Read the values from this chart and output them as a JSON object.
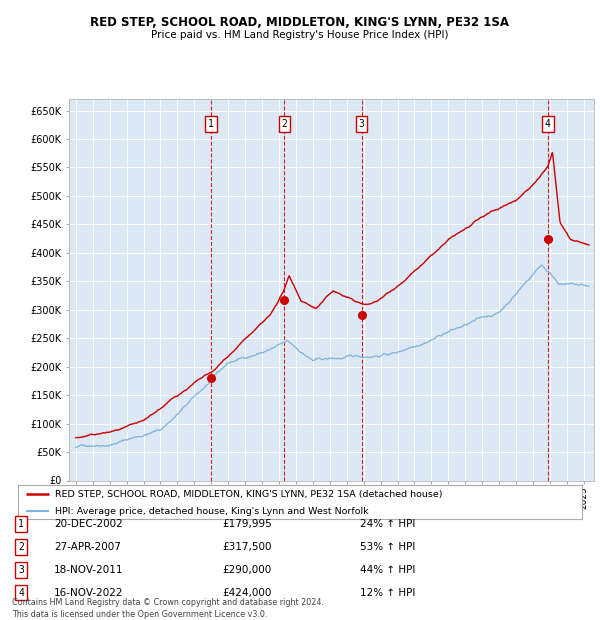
{
  "title": "RED STEP, SCHOOL ROAD, MIDDLETON, KING'S LYNN, PE32 1SA",
  "subtitle": "Price paid vs. HM Land Registry's House Price Index (HPI)",
  "ylim": [
    0,
    670000
  ],
  "xlim_start": 1994.6,
  "xlim_end": 2025.6,
  "plot_bg": "#dce9f5",
  "grid_color": "#ffffff",
  "red_color": "#cc0000",
  "blue_color": "#7fb3d9",
  "sale_dates": [
    2002.97,
    2007.32,
    2011.88,
    2022.88
  ],
  "sale_prices": [
    179995,
    317500,
    290000,
    424000
  ],
  "sale_labels": [
    "1",
    "2",
    "3",
    "4"
  ],
  "legend_line1": "RED STEP, SCHOOL ROAD, MIDDLETON, KING'S LYNN, PE32 1SA (detached house)",
  "legend_line2": "HPI: Average price, detached house, King's Lynn and West Norfolk",
  "table_rows": [
    [
      "1",
      "20-DEC-2002",
      "£179,995",
      "24% ↑ HPI"
    ],
    [
      "2",
      "27-APR-2007",
      "£317,500",
      "53% ↑ HPI"
    ],
    [
      "3",
      "18-NOV-2011",
      "£290,000",
      "44% ↑ HPI"
    ],
    [
      "4",
      "16-NOV-2022",
      "£424,000",
      "12% ↑ HPI"
    ]
  ],
  "footer": "Contains HM Land Registry data © Crown copyright and database right 2024.\nThis data is licensed under the Open Government Licence v3.0.",
  "yticks": [
    0,
    50000,
    100000,
    150000,
    200000,
    250000,
    300000,
    350000,
    400000,
    450000,
    500000,
    550000,
    600000,
    650000
  ],
  "ytick_labels": [
    "£0",
    "£50K",
    "£100K",
    "£150K",
    "£200K",
    "£250K",
    "£300K",
    "£350K",
    "£400K",
    "£450K",
    "£500K",
    "£550K",
    "£600K",
    "£650K"
  ]
}
